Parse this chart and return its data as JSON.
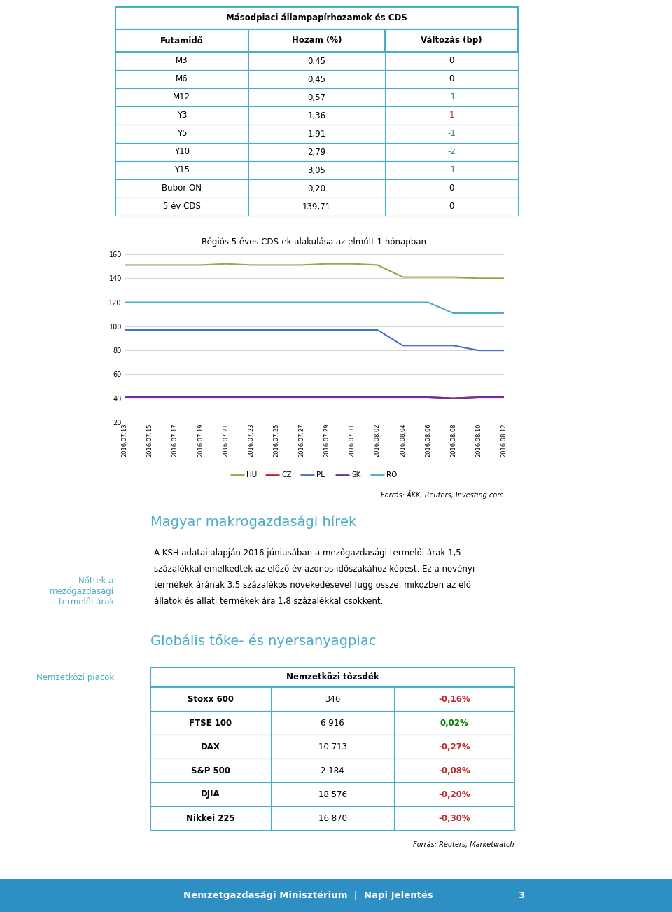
{
  "table1_title": "Másodpiaci állampapírhozamok és CDS",
  "table1_headers": [
    "Futamidő",
    "Hozam (%)",
    "Változás (bp)"
  ],
  "table1_rows": [
    [
      "M3",
      "0,45",
      "0"
    ],
    [
      "M6",
      "0,45",
      "0"
    ],
    [
      "M12",
      "0,57",
      "-1"
    ],
    [
      "Y3",
      "1,36",
      "1"
    ],
    [
      "Y5",
      "1,91",
      "-1"
    ],
    [
      "Y10",
      "2,79",
      "-2"
    ],
    [
      "Y15",
      "3,05",
      "-1"
    ],
    [
      "Bubor ON",
      "0,20",
      "0"
    ],
    [
      "5 év CDS",
      "139,71",
      "0"
    ]
  ],
  "table1_change_colors": [
    "black",
    "black",
    "#2e8b57",
    "#c0282d",
    "#2e8b57",
    "#2e8b57",
    "#2e8b57",
    "black",
    "black"
  ],
  "chart_title": "Régiós 5 éves CDS-ek alakulása az elmúlt 1 hónapban",
  "chart_dates": [
    "2016.07.13",
    "2016.07.15",
    "2016.07.17",
    "2016.07.19",
    "2016.07.21",
    "2016.07.23",
    "2016.07.25",
    "2016.07.27",
    "2016.07.29",
    "2016.07.31",
    "2016.08.02",
    "2016.08.04",
    "2016.08.06",
    "2016.08.08",
    "2016.08.10",
    "2016.08.12"
  ],
  "chart_HU": [
    151,
    151,
    151,
    151,
    152,
    151,
    151,
    151,
    152,
    152,
    151,
    141,
    141,
    141,
    140,
    140
  ],
  "chart_CZ": [
    41,
    41,
    41,
    41,
    41,
    41,
    41,
    41,
    41,
    41,
    41,
    41,
    41,
    40,
    41,
    41
  ],
  "chart_PL": [
    97,
    97,
    97,
    97,
    97,
    97,
    97,
    97,
    97,
    97,
    97,
    84,
    84,
    84,
    80,
    80
  ],
  "chart_SK": [
    41,
    41,
    41,
    41,
    41,
    41,
    41,
    41,
    41,
    41,
    41,
    41,
    41,
    40,
    41,
    41
  ],
  "chart_RO": [
    120,
    120,
    120,
    120,
    120,
    120,
    120,
    120,
    120,
    120,
    120,
    120,
    120,
    111,
    111,
    111
  ],
  "chart_colors": {
    "HU": "#8faa47",
    "CZ": "#c0282d",
    "PL": "#4472c4",
    "SK": "#7030a0",
    "RO": "#4bacc6"
  },
  "chart_ylim": [
    20,
    160
  ],
  "chart_yticks": [
    20,
    40,
    60,
    80,
    100,
    120,
    140,
    160
  ],
  "chart_source": "Forrás: ÁKK, Reuters, Investing.com",
  "section_title1": "Magyar makrogazdasági hírek",
  "sidebar_label1": "Nőttek a\nmezőgazdasági\ntermelői árak",
  "body_text1_lines": [
    "A KSH adatai alapján 2016 júniusában a mezőgazdasági termelői árak 1,5",
    "százalékkal emelkedtek az előző év azonos időszakához képest. Ez a növényi",
    "termékek árának 3,5 százalékos növekedésével függ össze, miközben az élő",
    "állatok és állati termékek ára 1,8 százalékkal csökkent."
  ],
  "section_title2": "Globális tőke- és nyersanyagpiac",
  "sidebar_label2": "Nemzetközi piacok",
  "table2_title": "Nemzetközi tőzsdék",
  "table2_rows": [
    [
      "Stoxx 600",
      "346",
      "-0,16%"
    ],
    [
      "FTSE 100",
      "6 916",
      "0,02%"
    ],
    [
      "DAX",
      "10 713",
      "-0,27%"
    ],
    [
      "S&P 500",
      "2 184",
      "-0,08%"
    ],
    [
      "DJIA",
      "18 576",
      "-0,20%"
    ],
    [
      "Nikkei 225",
      "16 870",
      "-0,30%"
    ]
  ],
  "table2_change_colors": [
    "#c0282d",
    "#008000",
    "#c0282d",
    "#c0282d",
    "#c0282d",
    "#c0282d"
  ],
  "table2_source": "Forrás: Reuters, Marketwatch",
  "footer_text": "Nemzetgazdasági Minisztérium  |  Napi Jelentés",
  "footer_page": "3",
  "sidebar_color": "#4bacc6",
  "section_color": "#4bacc6",
  "bg_color": "#ffffff",
  "table_border_color": "#4bacc6",
  "footer_bg": "#2e8fc4"
}
